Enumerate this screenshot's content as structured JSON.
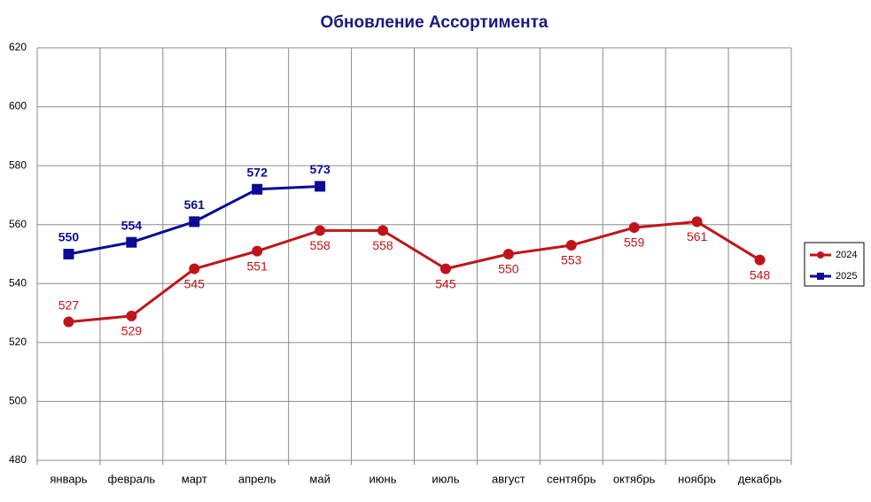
{
  "chart_data": {
    "type": "line",
    "title": "Обновление Ассортимента",
    "categories": [
      "январь",
      "февраль",
      "март",
      "апрель",
      "май",
      "июнь",
      "июль",
      "август",
      "сентябрь",
      "октябрь",
      "ноябрь",
      "декабрь"
    ],
    "series": [
      {
        "name": "2024",
        "color": "#c0141a",
        "marker": "circle",
        "values": [
          527,
          529,
          545,
          551,
          558,
          558,
          545,
          550,
          553,
          559,
          561,
          548
        ]
      },
      {
        "name": "2025",
        "color": "#0a0a96",
        "marker": "square",
        "values": [
          550,
          554,
          561,
          572,
          573,
          null,
          null,
          null,
          null,
          null,
          null,
          null
        ]
      }
    ],
    "ylim": [
      480,
      620
    ],
    "yticks": [
      480,
      500,
      520,
      540,
      560,
      580,
      600,
      620
    ],
    "grid": true,
    "legend": "right"
  }
}
